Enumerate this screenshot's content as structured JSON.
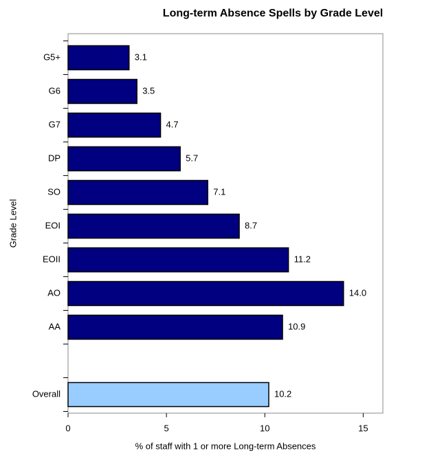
{
  "chart_data": {
    "type": "hbar",
    "title": "Long-term Absence Spells by Grade Level",
    "ylabel": "Grade Level",
    "xlabel": "% of staff with 1 or more Long-term Absences",
    "categories": [
      "G5+",
      "G6",
      "G7",
      "DP",
      "SO",
      "EOI",
      "EOII",
      "AO",
      "AA",
      null,
      "Overall"
    ],
    "values": [
      3.1,
      3.5,
      4.7,
      5.7,
      7.1,
      8.7,
      11.2,
      14.0,
      10.9,
      null,
      10.2
    ],
    "value_labels": [
      "3.1",
      "3.5",
      "4.7",
      "5.7",
      "7.1",
      "8.7",
      "11.2",
      "14.0",
      "10.9",
      null,
      "10.2"
    ],
    "colors": [
      "#000080",
      "#000080",
      "#000080",
      "#000080",
      "#000080",
      "#000080",
      "#000080",
      "#000080",
      "#000080",
      null,
      "#99ccff"
    ],
    "xlim": [
      0,
      16
    ],
    "xticks": [
      0,
      5,
      10,
      15
    ]
  }
}
